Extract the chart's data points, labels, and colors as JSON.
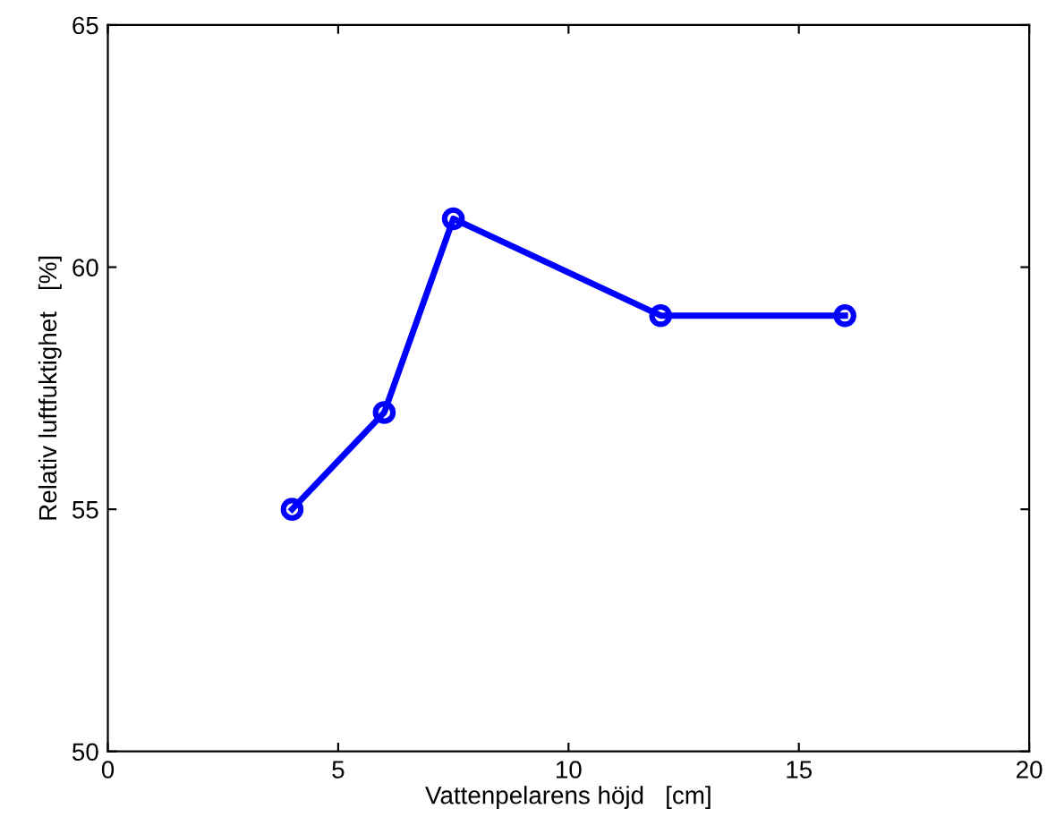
{
  "chart_data": {
    "type": "line",
    "xlabel": "Vattenpelarens höjd   [cm]",
    "ylabel": "Relativ luftfuktighet   [%]",
    "x": [
      4,
      6,
      7.5,
      12,
      16
    ],
    "series": [
      {
        "color": "#0000ff",
        "values": [
          55,
          57,
          61,
          59,
          59
        ]
      }
    ],
    "xlim": [
      0,
      20
    ],
    "xticks": [
      0,
      5,
      10,
      15,
      20
    ],
    "ylim": [
      50,
      65
    ],
    "yticks": [
      50,
      55,
      60,
      65
    ],
    "grid": false,
    "legend": false,
    "marker": "circle",
    "line_style": "solid"
  }
}
